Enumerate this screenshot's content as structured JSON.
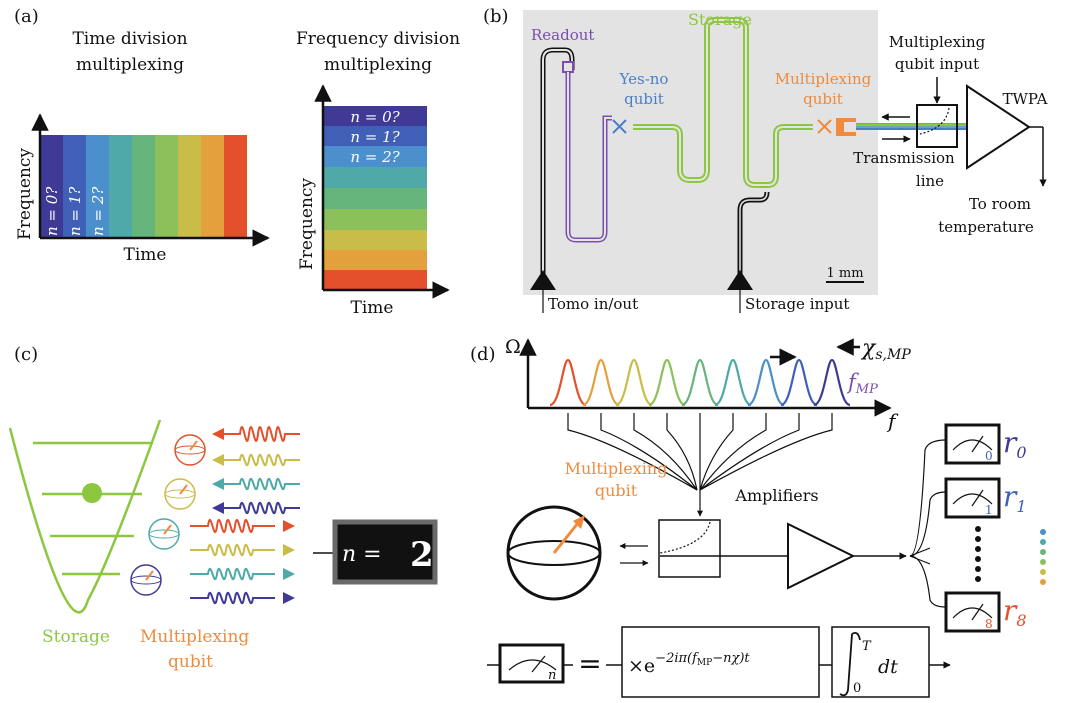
{
  "panel_a": {
    "label": "(a)",
    "tdm_title_1": "Time division",
    "tdm_title_2": "multiplexing",
    "fdm_title_1": "Frequency division",
    "fdm_title_2": "multiplexing",
    "tdm_xlabel": "Time",
    "tdm_ylabel": "Frequency",
    "fdm_xlabel": "Time",
    "fdm_ylabel": "Frequency",
    "tdm_bands": [
      "n = 0?",
      "n = 1?",
      "n = 2?"
    ],
    "fdm_bands": [
      "n = 0?",
      "n = 1?",
      "n = 2?"
    ],
    "colors": [
      "#3f3a96",
      "#4060b8",
      "#4b8fcc",
      "#4ea9a8",
      "#66b57c",
      "#8cc05a",
      "#c9bc48",
      "#e3a03c",
      "#e2622c",
      "#e4502c"
    ]
  },
  "panel_b": {
    "label": "(b)",
    "readout": "Readout",
    "storage": "Storage",
    "yesno_1": "Yes-no",
    "yesno_2": "qubit",
    "mp_qubit_1": "Multiplexing",
    "mp_qubit_2": "qubit",
    "mp_input_1": "Multiplexing",
    "mp_input_2": "qubit input",
    "twpa": "TWPA",
    "tline_1": "Transmission",
    "tline_2": "line",
    "room_1": "To room",
    "room_2": "temperature",
    "scale": "1 mm",
    "tomo": "Tomo in/out",
    "storage_input": "Storage input",
    "colors": {
      "readout": "#7a4fb0",
      "storage": "#8dc63f",
      "yesno": "#4a7fc8",
      "mp": "#f08a3c"
    }
  },
  "panel_c": {
    "label": "(c)",
    "storage": "Storage",
    "mp_1": "Multiplexing",
    "mp_2": "qubit",
    "display_n": "n =",
    "display_digit": "2"
  },
  "panel_d": {
    "label": "(d)",
    "omega": "Ω",
    "f": "f",
    "chi": "χ",
    "chi_sub": "s,MP",
    "fmp": "f",
    "fmp_sub": "MP",
    "mp_1": "Multiplexing",
    "mp_2": "qubit",
    "amplifiers": "Amplifiers",
    "r_labels": [
      {
        "base": "r",
        "sub": "0"
      },
      {
        "base": "r",
        "sub": "1"
      },
      {
        "base": "r",
        "sub": "8"
      }
    ],
    "meter_subs": [
      "0",
      "1",
      "8"
    ],
    "formula_meter_sub": "n",
    "equals": "=",
    "exp_prefix": "×e",
    "exp_power": "−2iπ(f",
    "exp_power_sub": "MP",
    "exp_power_end": "−nχ)t",
    "integral_upper": "T",
    "integral_lower": "0",
    "integral_dt": "dt"
  }
}
